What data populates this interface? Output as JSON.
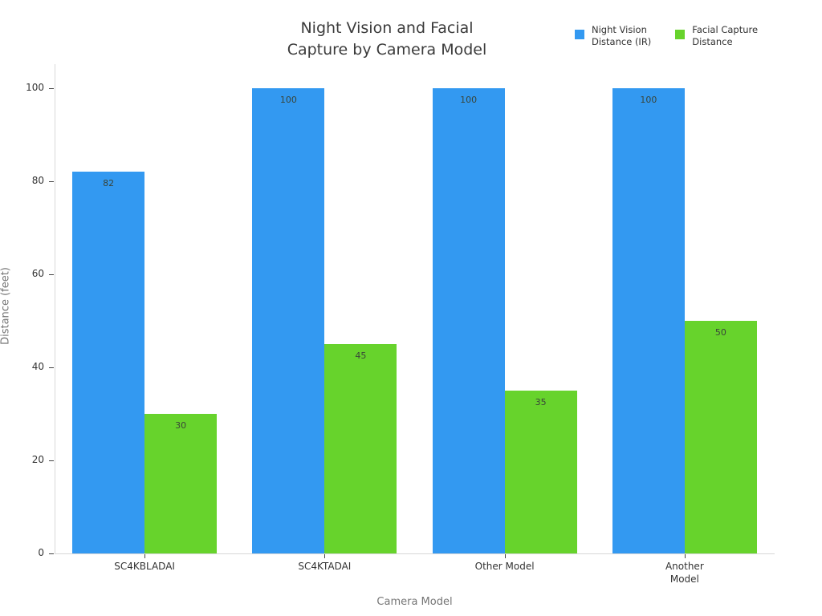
{
  "title": {
    "text": "Night Vision and Facial\nCapture by Camera Model"
  },
  "legend": {
    "items": [
      {
        "label": "Night Vision\nDistance (IR)",
        "color": "#3399f1"
      },
      {
        "label": "Facial Capture\nDistance",
        "color": "#67d32c"
      }
    ]
  },
  "yaxis": {
    "title": "Distance (feet)",
    "ticks": [
      0,
      20,
      40,
      60,
      80,
      100
    ]
  },
  "xaxis": {
    "title": "Camera Model",
    "tick_labels": [
      "SC4KBLADAI",
      "SC4KTADAI",
      "Other Model",
      "Another\nModel"
    ]
  },
  "chart_data": {
    "type": "bar",
    "title": "Night Vision and Facial Capture by Camera Model",
    "categories": [
      "SC4KBLADAI",
      "SC4KTADAI",
      "Other Model",
      "Another Model"
    ],
    "series": [
      {
        "name": "Night Vision Distance (IR)",
        "color": "#3399f1",
        "values": [
          82,
          100,
          100,
          100
        ]
      },
      {
        "name": "Facial Capture Distance",
        "color": "#67d32c",
        "values": [
          30,
          45,
          35,
          50
        ]
      }
    ],
    "xlabel": "Camera Model",
    "ylabel": "Distance (feet)",
    "ylim": [
      0,
      105
    ],
    "yticks": [
      0,
      20,
      40,
      60,
      80,
      100
    ],
    "grid": false,
    "legend_position": "top-right",
    "bar_labels": "inside-top"
  },
  "colors": {
    "axis_line": "#d8d8d8",
    "tick_mark": "#444444",
    "tick_text": "#333333",
    "axis_title_text": "#757575",
    "title_text": "#3b3b3b",
    "bar_value_text": "#394439",
    "background": "#ffffff"
  }
}
